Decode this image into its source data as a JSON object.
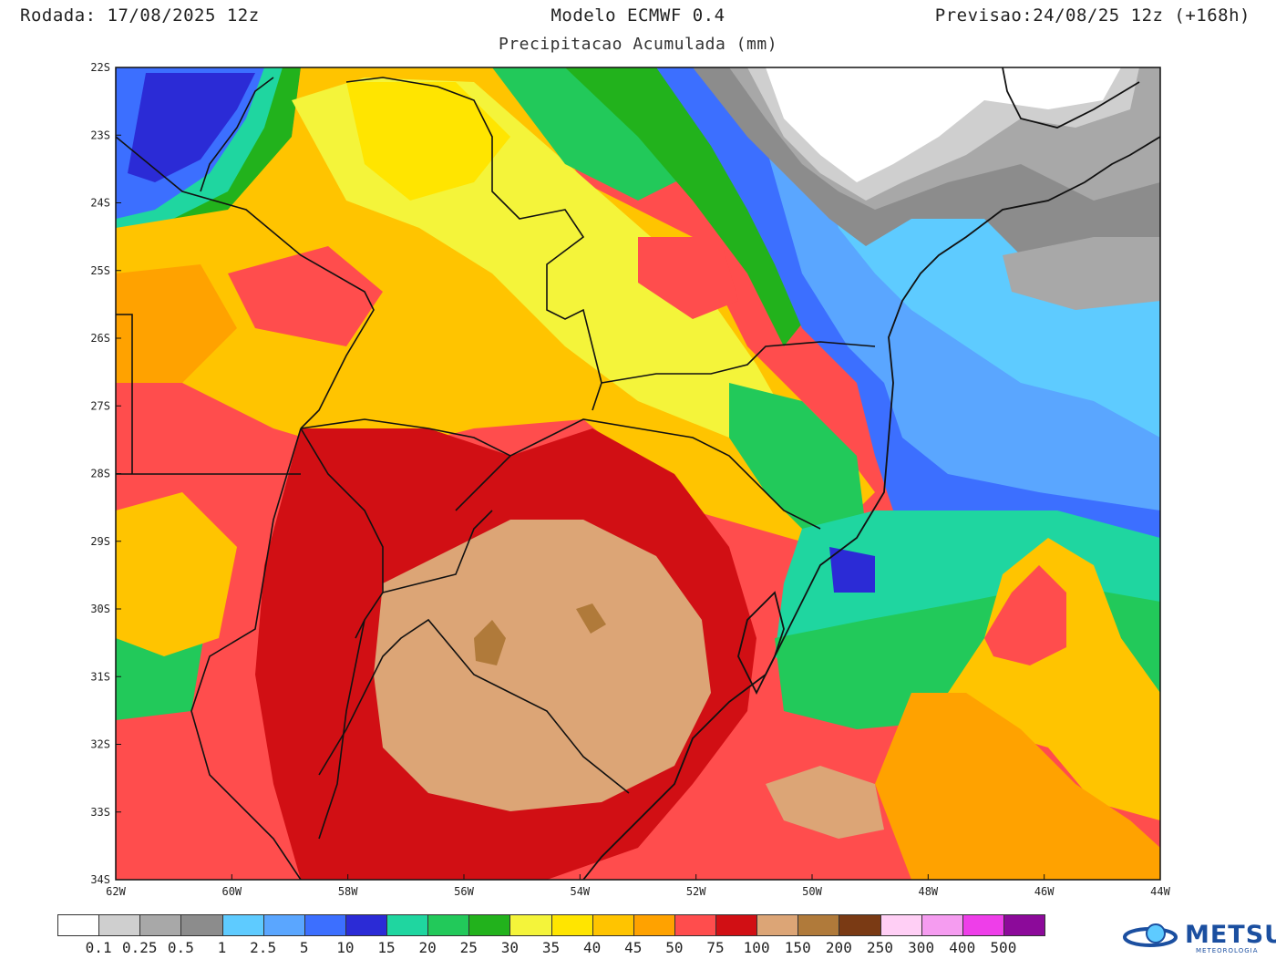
{
  "header": {
    "run": "Rodada: 17/08/2025 12z",
    "model": "Modelo ECMWF 0.4",
    "valid": "Previsao:24/08/25 12z (+168h)",
    "subtitle": "Precipitacao Acumulada (mm)"
  },
  "map": {
    "lat_labels": [
      "22S",
      "23S",
      "24S",
      "25S",
      "26S",
      "27S",
      "28S",
      "29S",
      "30S",
      "31S",
      "32S",
      "33S",
      "34S"
    ],
    "lon_labels": [
      "62W",
      "60W",
      "58W",
      "56W",
      "54W",
      "52W",
      "50W",
      "48W",
      "46W",
      "44W"
    ],
    "field": "precipitation-accumulated",
    "units": "mm"
  },
  "legend": {
    "colors": [
      "#ffffff",
      "#cfcfcf",
      "#a8a8a8",
      "#8c8c8c",
      "#5ecbff",
      "#5aa6ff",
      "#3c6fff",
      "#2b2bd6",
      "#1fd6a0",
      "#22c95a",
      "#22b21c",
      "#f4f43a",
      "#ffe500",
      "#ffc400",
      "#ffa200",
      "#ff4d4d",
      "#d10f14",
      "#dca576",
      "#b07a3a",
      "#7a3a14",
      "#ffcff5",
      "#f59cf0",
      "#ee3ee9",
      "#8c0a9a"
    ],
    "labels": [
      "0.1",
      "0.25",
      "0.5",
      "1",
      "2.5",
      "5",
      "10",
      "15",
      "20",
      "25",
      "30",
      "35",
      "40",
      "45",
      "50",
      "75",
      "100",
      "150",
      "200",
      "250",
      "300",
      "400",
      "500"
    ]
  },
  "logo": {
    "name": "METSUL",
    "sub": "METEOROLOGIA",
    "colors": [
      "#1b4fa0",
      "#5ecbff"
    ]
  }
}
